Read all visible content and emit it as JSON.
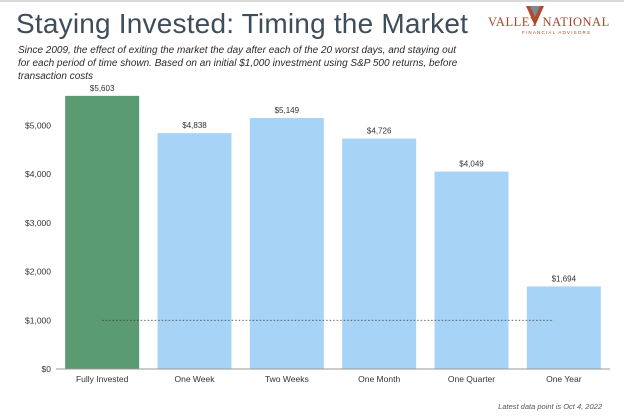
{
  "title": "Staying Invested: Timing the Market",
  "subtitle": "Since 2009, the effect of exiting the market the day after each of the 20 worst days, and staying out for each period of time shown. Based on an initial $1,000 investment using S&P 500 returns, before transaction costs",
  "logo": {
    "name": "VALLEY NATIONAL",
    "tagline": "FINANCIAL ADVISORS"
  },
  "footnote": "Latest data point is Oct 4, 2022",
  "colors": {
    "highlight_bar": "#5b9b74",
    "bar": "#a7d4f6",
    "title": "#3f4d5a",
    "logo": "#a6452c"
  },
  "chart_data": {
    "type": "bar",
    "categories": [
      "Fully Invested",
      "One Week",
      "Two Weeks",
      "One Month",
      "One Quarter",
      "One Year"
    ],
    "values": [
      5603,
      4838,
      5149,
      4726,
      4049,
      1694
    ],
    "value_labels": [
      "$5,603",
      "$4,838",
      "$5,149",
      "$4,726",
      "$4,049",
      "$1,694"
    ],
    "ylim": [
      0,
      5600
    ],
    "yticks": [
      0,
      1000,
      2000,
      3000,
      4000,
      5000
    ],
    "ytick_labels": [
      "$0",
      "$1,000",
      "$2,000",
      "$3,000",
      "$4,000",
      "$5,000"
    ],
    "reference_line": 1000,
    "grid": false
  }
}
